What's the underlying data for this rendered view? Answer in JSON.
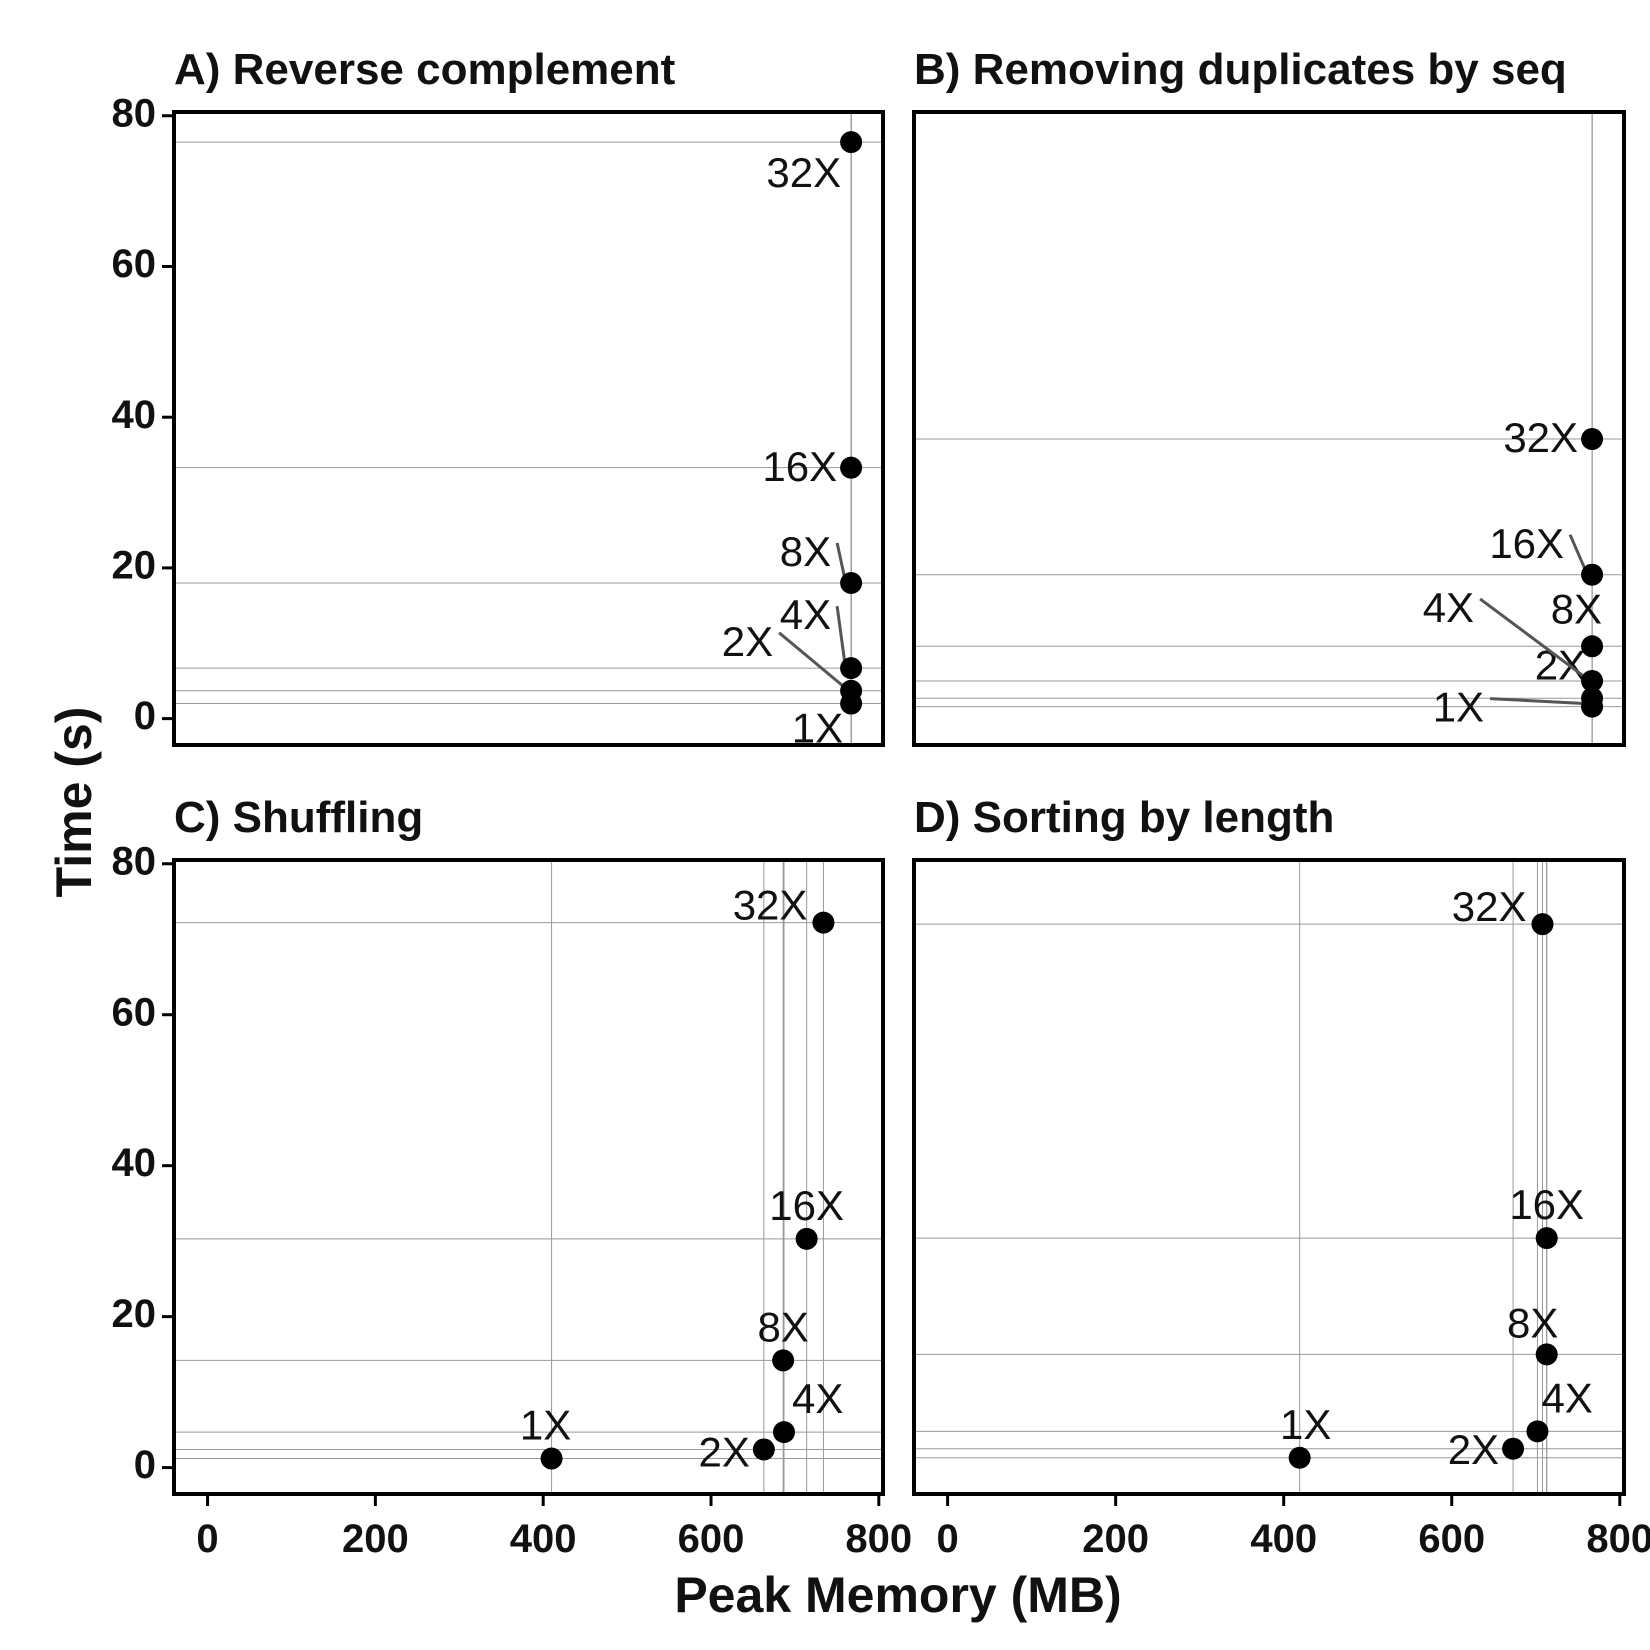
{
  "figure": {
    "xlabel": "Peak Memory (MB)",
    "ylabel": "Time (s)"
  },
  "chart_data": [
    {
      "type": "scatter",
      "title": "A) Reverse complement",
      "xlim": [
        -40,
        805
      ],
      "ylim": [
        -3.5,
        80.5
      ],
      "xticks": [
        0,
        200,
        400,
        600,
        800
      ],
      "yticks": [
        0,
        20,
        40,
        60,
        80
      ],
      "grid": true,
      "points": [
        {
          "label": "1X",
          "x": 767,
          "y": 2.0
        },
        {
          "label": "2X",
          "x": 767,
          "y": 3.7
        },
        {
          "label": "4X",
          "x": 767,
          "y": 6.7
        },
        {
          "label": "8X",
          "x": 767,
          "y": 18.0
        },
        {
          "label": "16X",
          "x": 767,
          "y": 33.3
        },
        {
          "label": "32X",
          "x": 767,
          "y": 76.5
        }
      ]
    },
    {
      "type": "scatter",
      "title": "B) Removing duplicates by seq",
      "xlim": [
        -40,
        805
      ],
      "ylim": [
        -3.5,
        80.5
      ],
      "xticks": [
        0,
        200,
        400,
        600,
        800
      ],
      "yticks": [
        0,
        20,
        40,
        60,
        80
      ],
      "grid": true,
      "points": [
        {
          "label": "1X",
          "x": 767,
          "y": 1.6
        },
        {
          "label": "2X",
          "x": 767,
          "y": 2.7
        },
        {
          "label": "4X",
          "x": 767,
          "y": 5.0
        },
        {
          "label": "8X",
          "x": 767,
          "y": 9.6
        },
        {
          "label": "16X",
          "x": 767,
          "y": 19.1
        },
        {
          "label": "32X",
          "x": 767,
          "y": 37.1
        }
      ]
    },
    {
      "type": "scatter",
      "title": "C) Shuffling",
      "xlim": [
        -40,
        805
      ],
      "ylim": [
        -3.5,
        80.5
      ],
      "xticks": [
        0,
        200,
        400,
        600,
        800
      ],
      "yticks": [
        0,
        20,
        40,
        60,
        80
      ],
      "grid": true,
      "points": [
        {
          "label": "1X",
          "x": 410,
          "y": 1.2
        },
        {
          "label": "2X",
          "x": 663,
          "y": 2.4
        },
        {
          "label": "4X",
          "x": 687,
          "y": 4.7
        },
        {
          "label": "8X",
          "x": 686,
          "y": 14.2
        },
        {
          "label": "16X",
          "x": 714,
          "y": 30.3
        },
        {
          "label": "32X",
          "x": 734,
          "y": 72.2
        }
      ]
    },
    {
      "type": "scatter",
      "title": "D) Sorting by length",
      "xlim": [
        -40,
        805
      ],
      "ylim": [
        -3.5,
        80.5
      ],
      "xticks": [
        0,
        200,
        400,
        600,
        800
      ],
      "yticks": [
        0,
        20,
        40,
        60,
        80
      ],
      "grid": true,
      "points": [
        {
          "label": "1X",
          "x": 419,
          "y": 1.3
        },
        {
          "label": "2X",
          "x": 673,
          "y": 2.5
        },
        {
          "label": "4X",
          "x": 702,
          "y": 4.8
        },
        {
          "label": "8X",
          "x": 713,
          "y": 15.0
        },
        {
          "label": "16X",
          "x": 713,
          "y": 30.4
        },
        {
          "label": "32X",
          "x": 708,
          "y": 72.0
        }
      ]
    }
  ]
}
